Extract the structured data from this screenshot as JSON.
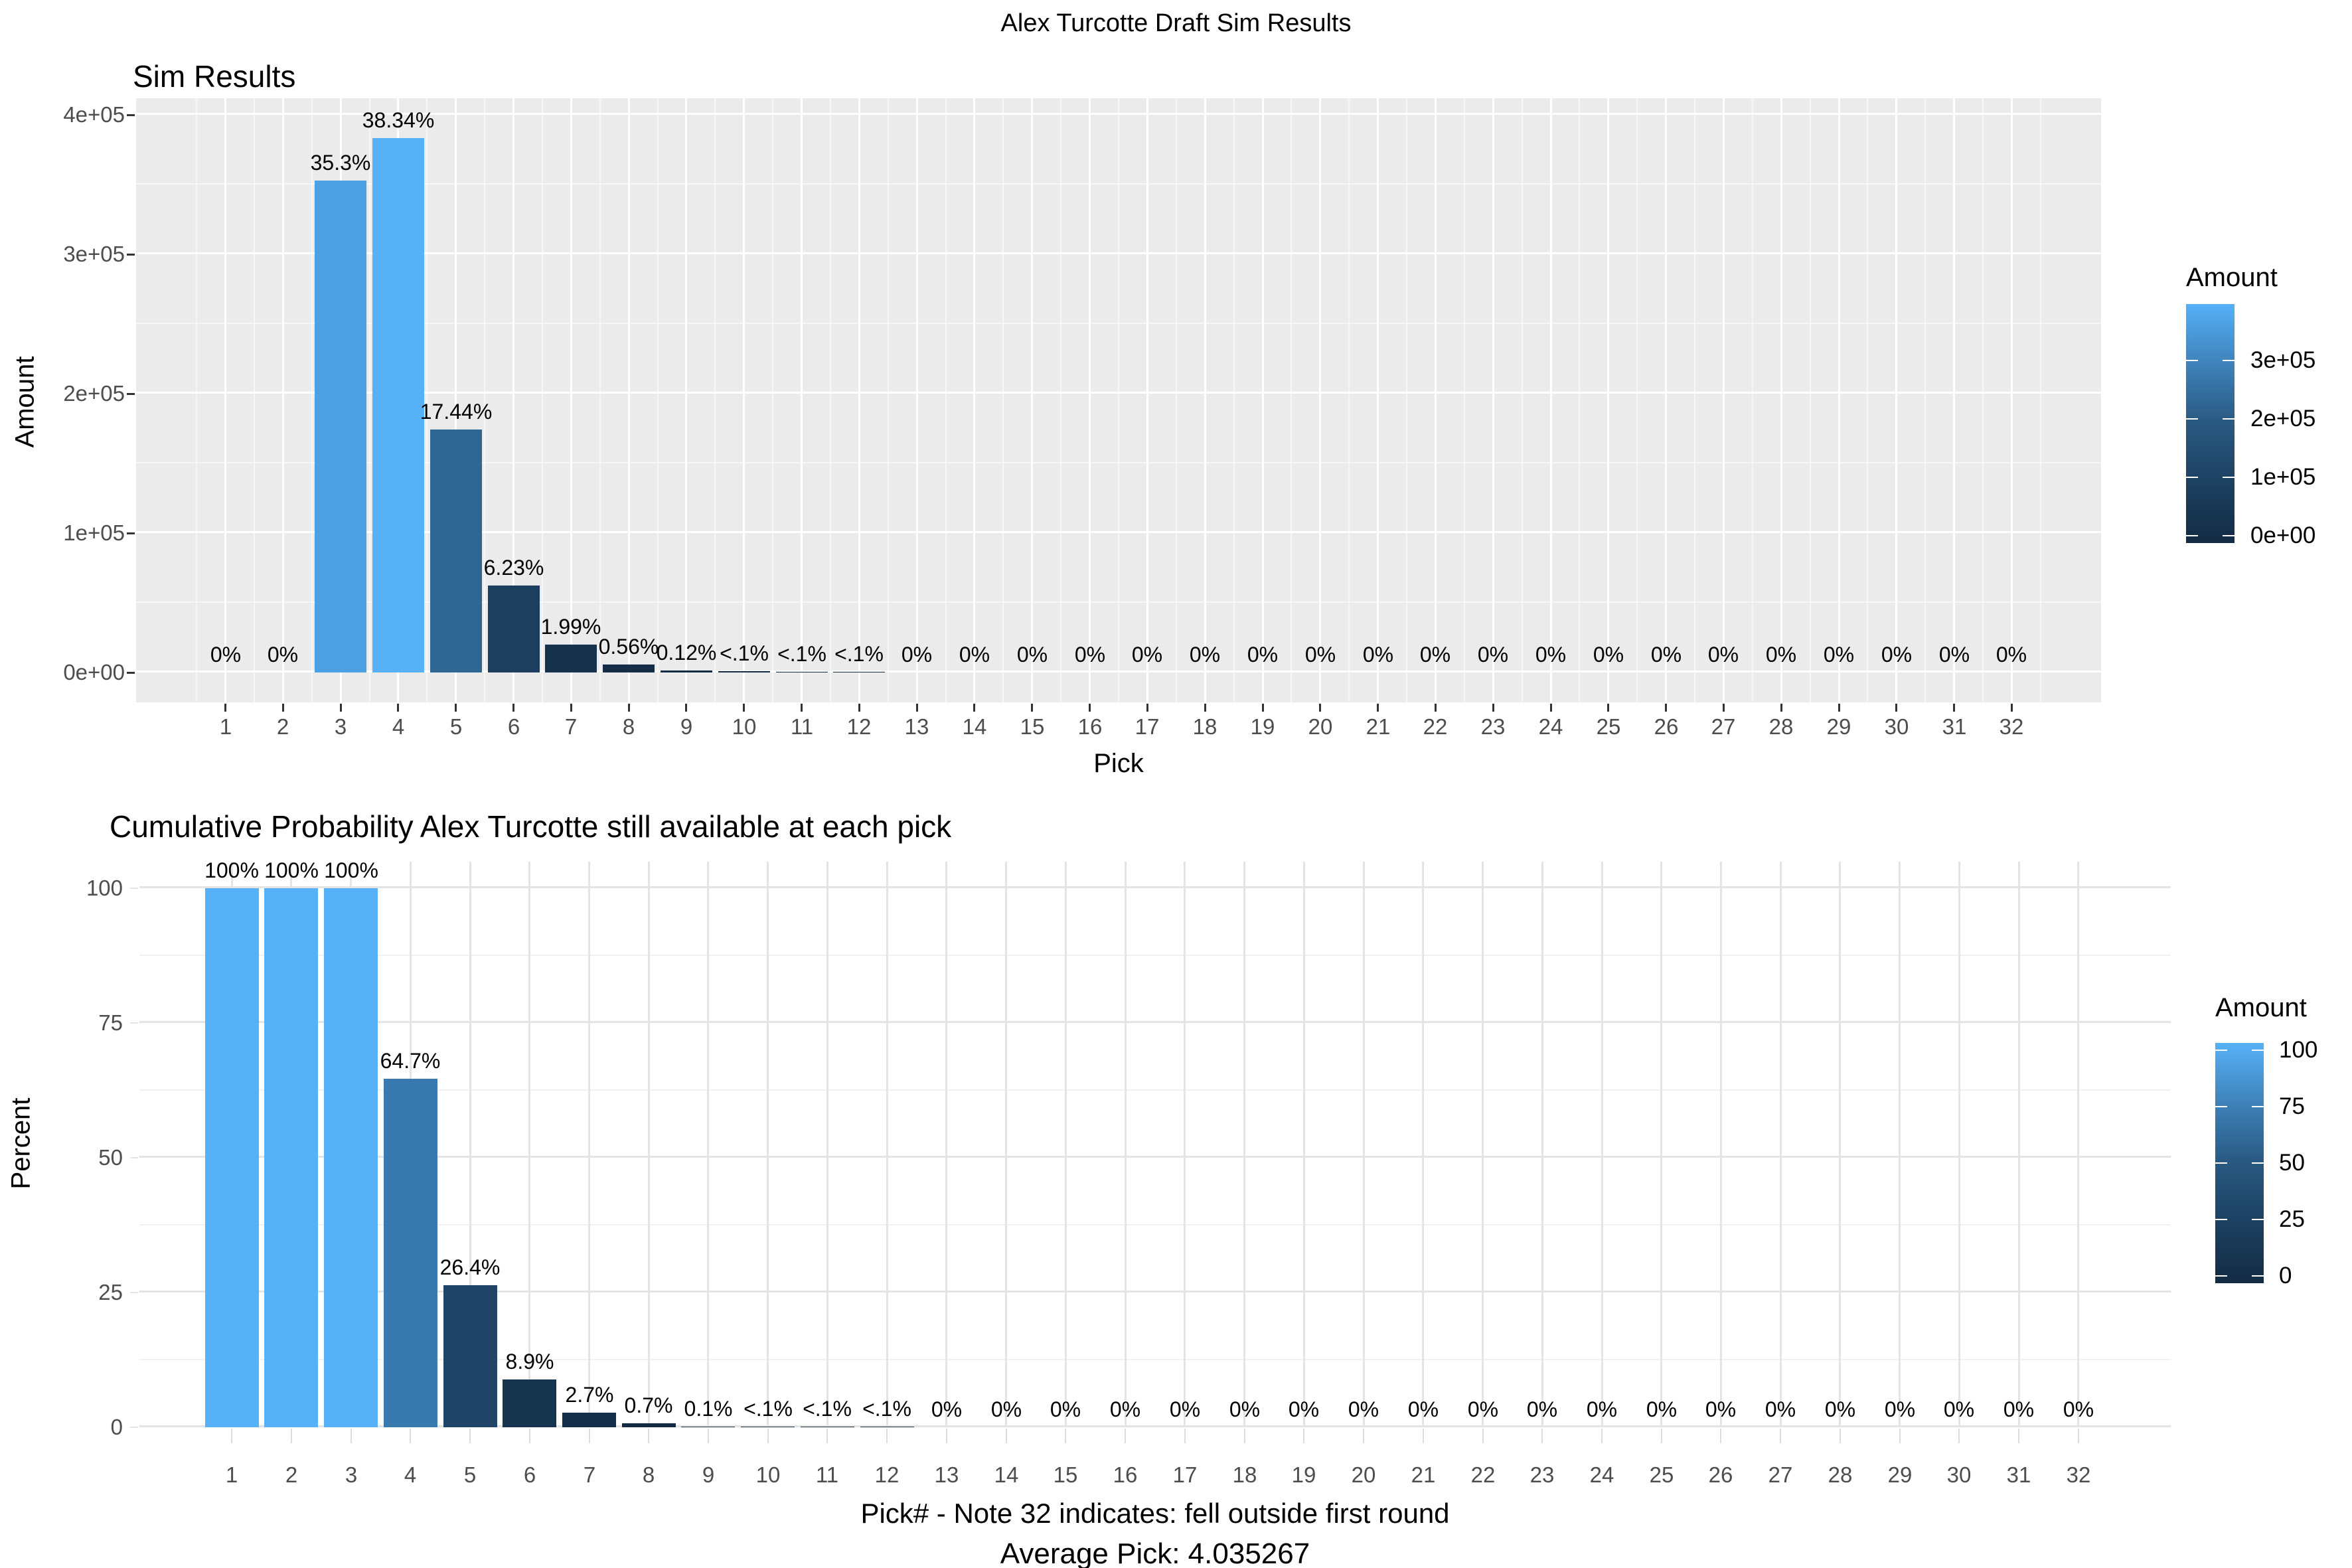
{
  "page_title": "Alex Turcotte Draft Sim Results",
  "gradient": {
    "high": "#56B1F7",
    "low": "#132B43"
  },
  "chart_data": [
    {
      "type": "bar",
      "title": "Sim Results",
      "xlabel": "Pick",
      "ylabel": "Amount",
      "ylim": [
        0,
        400000
      ],
      "ytick_labels": [
        "0e+00",
        "1e+05",
        "2e+05",
        "3e+05",
        "4e+05"
      ],
      "grid": "on",
      "legend_position": "right",
      "categories": [
        "1",
        "2",
        "3",
        "4",
        "5",
        "6",
        "7",
        "8",
        "9",
        "10",
        "11",
        "12",
        "13",
        "14",
        "15",
        "16",
        "17",
        "18",
        "19",
        "20",
        "21",
        "22",
        "23",
        "24",
        "25",
        "26",
        "27",
        "28",
        "29",
        "30",
        "31",
        "32"
      ],
      "values": [
        0,
        0,
        353000,
        383400,
        174400,
        62300,
        19900,
        5600,
        1200,
        900,
        400,
        200,
        0,
        0,
        0,
        0,
        0,
        0,
        0,
        0,
        0,
        0,
        0,
        0,
        0,
        0,
        0,
        0,
        0,
        0,
        0,
        0
      ],
      "bar_labels": [
        "0%",
        "0%",
        "35.3%",
        "38.34%",
        "17.44%",
        "6.23%",
        "1.99%",
        "0.56%",
        "0.12%",
        "<.1%",
        "<.1%",
        "<.1%",
        "0%",
        "0%",
        "0%",
        "0%",
        "0%",
        "0%",
        "0%",
        "0%",
        "0%",
        "0%",
        "0%",
        "0%",
        "0%",
        "0%",
        "0%",
        "0%",
        "0%",
        "0%",
        "0%",
        "0%"
      ],
      "bar_colors": [
        null,
        null,
        "#4BA1E2",
        "#56B1F7",
        "#2E6694",
        "#1C3F60",
        "#16314B",
        "#142C45",
        "#132B43",
        "#132B43",
        "#132B43",
        "#132B43",
        null,
        null,
        null,
        null,
        null,
        null,
        null,
        null,
        null,
        null,
        null,
        null,
        null,
        null,
        null,
        null,
        null,
        null,
        null,
        null
      ],
      "legend": {
        "title": "Amount",
        "max": 383400,
        "ticks": [
          {
            "label": "3e+05",
            "value": 300000
          },
          {
            "label": "2e+05",
            "value": 200000
          },
          {
            "label": "1e+05",
            "value": 100000
          },
          {
            "label": "0e+00",
            "value": 0
          }
        ]
      }
    },
    {
      "type": "bar",
      "title": "Cumulative Probability Alex Turcotte still available at each pick",
      "xlabel": "Pick# - Note 32 indicates: fell outside first round",
      "ylabel": "Percent",
      "ylim": [
        0,
        100
      ],
      "ytick_labels": [
        "0",
        "25",
        "50",
        "75",
        "100"
      ],
      "grid": "on",
      "legend_position": "right",
      "caption": "Average Pick: 4.035267",
      "categories": [
        "1",
        "2",
        "3",
        "4",
        "5",
        "6",
        "7",
        "8",
        "9",
        "10",
        "11",
        "12",
        "13",
        "14",
        "15",
        "16",
        "17",
        "18",
        "19",
        "20",
        "21",
        "22",
        "23",
        "24",
        "25",
        "26",
        "27",
        "28",
        "29",
        "30",
        "31",
        "32"
      ],
      "values": [
        100,
        100,
        100,
        64.7,
        26.4,
        8.9,
        2.7,
        0.7,
        0.1,
        0.08,
        0.05,
        0.03,
        0,
        0,
        0,
        0,
        0,
        0,
        0,
        0,
        0,
        0,
        0,
        0,
        0,
        0,
        0,
        0,
        0,
        0,
        0,
        0
      ],
      "bar_labels": [
        "100%",
        "100%",
        "100%",
        "64.7%",
        "26.4%",
        "8.9%",
        "2.7%",
        "0.7%",
        "0.1%",
        "<.1%",
        "<.1%",
        "<.1%",
        "0%",
        "0%",
        "0%",
        "0%",
        "0%",
        "0%",
        "0%",
        "0%",
        "0%",
        "0%",
        "0%",
        "0%",
        "0%",
        "0%",
        "0%",
        "0%",
        "0%",
        "0%",
        "0%",
        "0%"
      ],
      "bar_colors": [
        "#56B1F7",
        "#56B1F7",
        "#56B1F7",
        "#3879B0",
        "#1F4466",
        "#17344F",
        "#142E48",
        "#132C44",
        "#132B43",
        "#132B43",
        "#132B43",
        "#132B43",
        null,
        null,
        null,
        null,
        null,
        null,
        null,
        null,
        null,
        null,
        null,
        null,
        null,
        null,
        null,
        null,
        null,
        null,
        null,
        null
      ],
      "legend": {
        "title": "Amount",
        "max": 100,
        "ticks": [
          {
            "label": "100",
            "value": 100
          },
          {
            "label": "75",
            "value": 75
          },
          {
            "label": "50",
            "value": 50
          },
          {
            "label": "25",
            "value": 25
          },
          {
            "label": "0",
            "value": 0
          }
        ]
      }
    }
  ]
}
